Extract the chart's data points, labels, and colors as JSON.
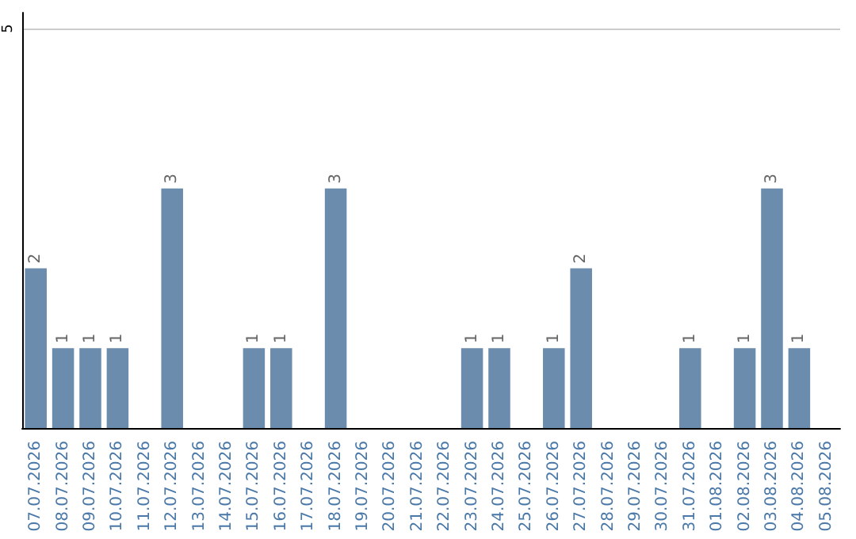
{
  "chart_data": {
    "type": "bar",
    "categories": [
      "07.07.2026",
      "08.07.2026",
      "09.07.2026",
      "10.07.2026",
      "11.07.2026",
      "12.07.2026",
      "13.07.2026",
      "14.07.2026",
      "15.07.2026",
      "16.07.2026",
      "17.07.2026",
      "18.07.2026",
      "19.07.2026",
      "20.07.2026",
      "21.07.2026",
      "22.07.2026",
      "23.07.2026",
      "24.07.2026",
      "25.07.2026",
      "26.07.2026",
      "27.07.2026",
      "28.07.2026",
      "29.07.2026",
      "30.07.2026",
      "31.07.2026",
      "01.08.2026",
      "02.08.2026",
      "03.08.2026",
      "04.08.2026",
      "05.08.2026"
    ],
    "values": [
      2,
      1,
      1,
      1,
      0,
      3,
      0,
      0,
      1,
      1,
      0,
      3,
      0,
      0,
      0,
      0,
      1,
      1,
      0,
      1,
      2,
      0,
      0,
      0,
      1,
      0,
      1,
      3,
      1,
      0
    ],
    "value_labels": [
      "2",
      "1",
      "1",
      "1",
      null,
      "3",
      null,
      null,
      "1",
      "1",
      null,
      "3",
      null,
      null,
      null,
      null,
      "1",
      "1",
      null,
      "1",
      "2",
      null,
      null,
      null,
      "1",
      null,
      "1",
      "3",
      "1",
      null
    ],
    "color": "#6b8cad",
    "ylim": [
      0,
      5.2
    ],
    "yticks": [
      5
    ],
    "grid": "y"
  }
}
